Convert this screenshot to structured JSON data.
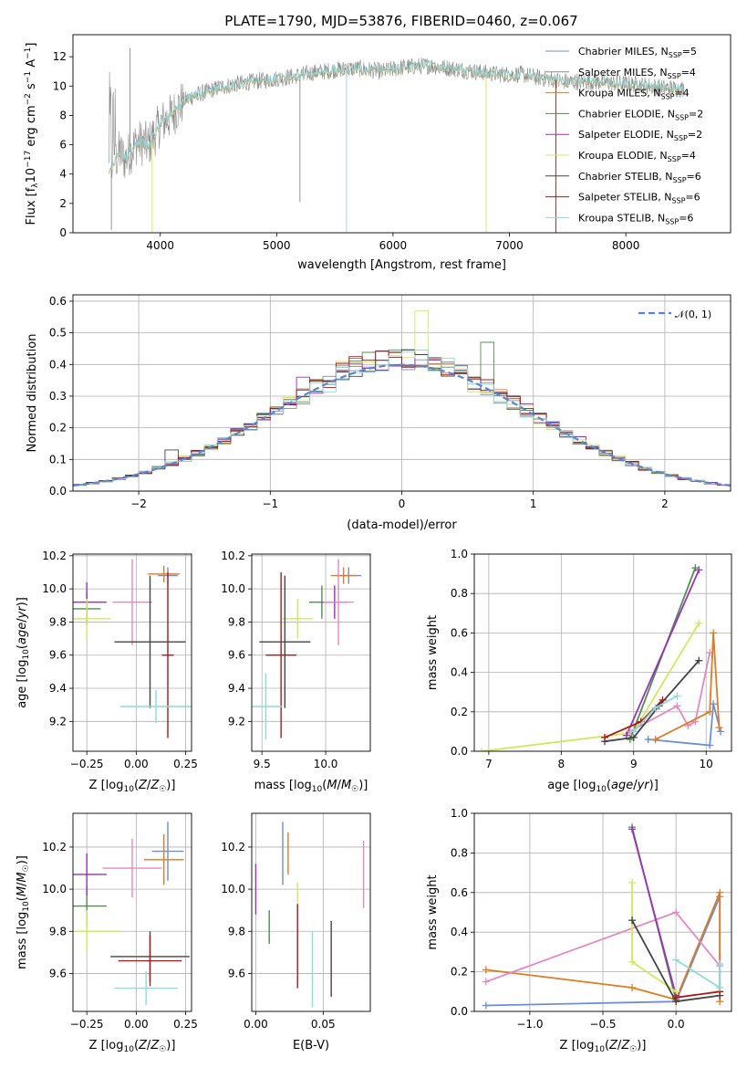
{
  "figure": {
    "title": "PLATE=1790, MJD=53876, FIBERID=0460, z=0.067"
  },
  "chart_data": [
    {
      "id": "spectrum",
      "type": "line",
      "title": "PLATE=1790, MJD=53876, FIBERID=0460, z=0.067",
      "xlabel": "wavelength [Angstrom, rest frame]",
      "ylabel": "Flux [f_λ 10^-17 erg cm^-2 s^-1 A^-1]",
      "xlim": [
        3250,
        8900
      ],
      "ylim": [
        0,
        13.5
      ],
      "xticks": [
        4000,
        5000,
        6000,
        7000,
        8000
      ],
      "yticks": [
        0,
        2,
        4,
        6,
        8,
        10,
        12
      ],
      "grid": false,
      "legend_position": "top-right",
      "legend": [
        {
          "base": "Chabrier MILES, N",
          "n": "5",
          "color": "#6a8fd6"
        },
        {
          "base": "Salpeter MILES, N",
          "n": "4",
          "color": "#8a8a8a"
        },
        {
          "base": "Kroupa MILES, N",
          "n": "4",
          "color": "#e07b1f"
        },
        {
          "base": "Chabrier ELODIE, N",
          "n": "2",
          "color": "#4f8f4f"
        },
        {
          "base": "Salpeter ELODIE, N",
          "n": "2",
          "color": "#9a2fc0"
        },
        {
          "base": "Kroupa ELODIE, N",
          "n": "4",
          "color": "#d4e857"
        },
        {
          "base": "Chabrier STELIB, N",
          "n": "6",
          "color": "#444444"
        },
        {
          "base": "Salpeter STELIB, N",
          "n": "6",
          "color": "#b01818"
        },
        {
          "base": "Kroupa STELIB, N",
          "n": "6",
          "color": "#8fdada"
        }
      ],
      "model_curve": {
        "x": [
          3570,
          3650,
          3700,
          3800,
          3900,
          4000,
          4100,
          4200,
          4300,
          4400,
          4500,
          4700,
          4900,
          5100,
          5300,
          5500,
          5700,
          5900,
          6100,
          6300,
          6500,
          6700,
          6900,
          7100,
          7300,
          7500,
          7700,
          7900,
          8100,
          8300,
          8500
        ],
        "y": [
          4.2,
          5.5,
          5.0,
          6.2,
          6.0,
          7.4,
          8.0,
          9.0,
          9.4,
          9.6,
          9.9,
          10.2,
          10.4,
          10.6,
          10.9,
          11.1,
          11.2,
          11.0,
          11.3,
          11.4,
          11.2,
          11.0,
          10.8,
          10.8,
          10.5,
          10.3,
          10.3,
          10.2,
          10.1,
          9.9,
          9.8
        ]
      }
    },
    {
      "id": "residuals",
      "type": "histogram",
      "xlabel": "(data-model)/error",
      "ylabel": "Normed distribution",
      "xlim": [
        -2.5,
        2.5
      ],
      "ylim": [
        0,
        0.62
      ],
      "xticks": [
        -2,
        -1,
        0,
        1,
        2
      ],
      "yticks": [
        0.0,
        0.1,
        0.2,
        0.3,
        0.4,
        0.5,
        0.6
      ],
      "grid": true,
      "legend_position": "top-right",
      "legend": [
        {
          "label": "𝒩(0, 1)",
          "color": "#5b84d8"
        }
      ],
      "series": [
        {
          "name": "Chabrier MILES",
          "color": "#6a8fd6",
          "spike": []
        },
        {
          "name": "Salpeter MILES",
          "color": "#8a8a8a",
          "spike": []
        },
        {
          "name": "Kroupa MILES",
          "color": "#e07b1f",
          "spike": []
        },
        {
          "name": "Chabrier ELODIE",
          "color": "#4f8f4f",
          "spike": [
            0.65,
            0.47
          ]
        },
        {
          "name": "Salpeter ELODIE",
          "color": "#9a2fc0",
          "spike": [
            -0.75,
            0.36
          ]
        },
        {
          "name": "Kroupa ELODIE",
          "color": "#d4e857",
          "spike": [
            0.15,
            0.57
          ]
        },
        {
          "name": "Chabrier STELIB",
          "color": "#444444",
          "spike": [
            -1.75,
            0.13
          ]
        },
        {
          "name": "Salpeter STELIB",
          "color": "#b01818",
          "spike": []
        },
        {
          "name": "Kroupa STELIB",
          "color": "#8fdada",
          "spike": []
        }
      ]
    },
    {
      "id": "age-vs-Z",
      "type": "scatter",
      "xlabel": "Z [log10(Z/Z☉)]",
      "ylabel": "age [log10(age/yr)]",
      "xlim": [
        -0.32,
        0.28
      ],
      "ylim": [
        9.02,
        10.21
      ],
      "xticks": [
        -0.25,
        0.0,
        0.25
      ],
      "yticks": [
        9.2,
        9.4,
        9.6,
        9.8,
        10.0,
        10.2
      ],
      "grid": true,
      "series": [
        {
          "name": "Chabrier MILES",
          "color": "#6a8fd6",
          "x": 0.16,
          "xerr": 0.05,
          "y": 10.08,
          "yerr": 0.05
        },
        {
          "name": "Kroupa MILES",
          "color": "#e07b1f",
          "x": 0.14,
          "xerr": 0.08,
          "y": 10.09,
          "yerr": 0.05
        },
        {
          "name": "Chabrier ELODIE",
          "color": "#4f8f4f",
          "x": -0.25,
          "xerr": 0.07,
          "y": 9.88,
          "yerr": 0.1
        },
        {
          "name": "Salpeter ELODIE",
          "color": "#9a2fc0",
          "x": -0.25,
          "xerr": 0.1,
          "y": 9.92,
          "yerr": 0.12
        },
        {
          "name": "Kroupa ELODIE",
          "color": "#d4e857",
          "x": -0.25,
          "xerr": 0.12,
          "y": 9.82,
          "yerr": 0.12
        },
        {
          "name": "Salpeter MILES (pink)",
          "color": "#e38ac0",
          "x": -0.02,
          "xerr": 0.1,
          "y": 9.92,
          "yerr": 0.26
        },
        {
          "name": "Chabrier STELIB",
          "color": "#444444",
          "x": 0.07,
          "xerr": 0.18,
          "y": 9.68,
          "yerr": 0.4
        },
        {
          "name": "Salpeter STELIB",
          "color": "#b01818",
          "x": 0.16,
          "xerr": 0.03,
          "y": 9.6,
          "yerr": 0.5
        },
        {
          "name": "Kroupa STELIB",
          "color": "#8fdada",
          "x": 0.1,
          "xerr": 0.18,
          "y": 9.29,
          "yerr": 0.1
        }
      ]
    },
    {
      "id": "age-vs-mass",
      "type": "scatter",
      "xlabel": "mass [log10(M/M☉)]",
      "ylabel": "",
      "xlim": [
        9.42,
        10.35
      ],
      "ylim": [
        9.02,
        10.21
      ],
      "xticks": [
        9.5,
        10.0
      ],
      "yticks": [
        9.2,
        9.4,
        9.6,
        9.8,
        10.0,
        10.2
      ],
      "grid": true,
      "series": [
        {
          "name": "Chabrier MILES",
          "color": "#6a8fd6",
          "x": 10.18,
          "xerr": 0.1,
          "y": 10.08,
          "yerr": 0.05
        },
        {
          "name": "Kroupa MILES",
          "color": "#e07b1f",
          "x": 10.14,
          "xerr": 0.1,
          "y": 10.08,
          "yerr": 0.05
        },
        {
          "name": "Chabrier ELODIE",
          "color": "#4f8f4f",
          "x": 9.97,
          "xerr": 0.1,
          "y": 9.92,
          "yerr": 0.1
        },
        {
          "name": "Salpeter ELODIE",
          "color": "#9a2fc0",
          "x": 10.07,
          "xerr": 0.1,
          "y": 9.92,
          "yerr": 0.1
        },
        {
          "name": "Kroupa ELODIE",
          "color": "#d4e857",
          "x": 9.78,
          "xerr": 0.12,
          "y": 9.82,
          "yerr": 0.12
        },
        {
          "name": "Salpeter MILES (pink)",
          "color": "#e38ac0",
          "x": 10.1,
          "xerr": 0.12,
          "y": 9.92,
          "yerr": 0.26
        },
        {
          "name": "Chabrier STELIB",
          "color": "#444444",
          "x": 9.68,
          "xerr": 0.2,
          "y": 9.68,
          "yerr": 0.4
        },
        {
          "name": "Salpeter STELIB",
          "color": "#b01818",
          "x": 9.65,
          "xerr": 0.12,
          "y": 9.6,
          "yerr": 0.5
        },
        {
          "name": "Kroupa STELIB",
          "color": "#8fdada",
          "x": 9.53,
          "xerr": 0.13,
          "y": 9.29,
          "yerr": 0.2
        }
      ]
    },
    {
      "id": "weight-vs-age",
      "type": "line",
      "xlabel": "age [log10(age/yr)]",
      "ylabel": "mass weight",
      "xlim": [
        6.8,
        10.35
      ],
      "ylim": [
        0,
        1.0
      ],
      "xticks": [
        7,
        8,
        9,
        10
      ],
      "yticks": [
        0.0,
        0.2,
        0.4,
        0.6,
        0.8,
        1.0
      ],
      "grid": true,
      "series": [
        {
          "name": "Kroupa ELODIE",
          "color": "#d4e857",
          "x": [
            6.9,
            8.9,
            9.0,
            9.9
          ],
          "y": [
            0.0,
            0.09,
            0.1,
            0.65
          ]
        },
        {
          "name": "Chabrier ELODIE",
          "color": "#4f8f4f",
          "x": [
            8.95,
            9.85
          ],
          "y": [
            0.06,
            0.93
          ]
        },
        {
          "name": "Salpeter ELODIE",
          "color": "#9a2fc0",
          "x": [
            8.9,
            9.9
          ],
          "y": [
            0.08,
            0.92
          ]
        },
        {
          "name": "Salpeter MILES (pink)",
          "color": "#e38ac0",
          "x": [
            8.95,
            9.6,
            9.75,
            9.85,
            10.05
          ],
          "y": [
            0.1,
            0.23,
            0.13,
            0.15,
            0.5
          ]
        },
        {
          "name": "Chabrier MILES",
          "color": "#6a8fd6",
          "x": [
            9.2,
            10.05,
            10.1,
            10.2
          ],
          "y": [
            0.06,
            0.03,
            0.24,
            0.1
          ]
        },
        {
          "name": "Kroupa MILES",
          "color": "#e07b1f",
          "x": [
            9.3,
            10.05,
            10.1,
            10.18
          ],
          "y": [
            0.06,
            0.2,
            0.6,
            0.12
          ]
        },
        {
          "name": "Chabrier STELIB",
          "color": "#444444",
          "x": [
            8.6,
            9.0,
            9.35,
            9.9
          ],
          "y": [
            0.05,
            0.07,
            0.23,
            0.46
          ]
        },
        {
          "name": "Salpeter STELIB",
          "color": "#b01818",
          "x": [
            8.6,
            9.1,
            9.4
          ],
          "y": [
            0.07,
            0.15,
            0.26
          ]
        },
        {
          "name": "Kroupa STELIB",
          "color": "#8fdada",
          "x": [
            9.0,
            9.3,
            9.6
          ],
          "y": [
            0.1,
            0.22,
            0.28
          ]
        }
      ]
    },
    {
      "id": "mass-vs-Z",
      "type": "scatter",
      "xlabel": "Z [log10(Z/Z☉)]",
      "ylabel": "mass [log10(M/M☉)]",
      "xlim": [
        -0.32,
        0.28
      ],
      "ylim": [
        9.42,
        10.36
      ],
      "xticks": [
        -0.25,
        0.0,
        0.25
      ],
      "yticks": [
        9.6,
        9.8,
        10.0,
        10.2
      ],
      "grid": true,
      "series": [
        {
          "name": "Chabrier MILES",
          "color": "#6a8fd6",
          "x": 0.16,
          "xerr": 0.08,
          "y": 10.18,
          "yerr": 0.14
        },
        {
          "name": "Kroupa MILES",
          "color": "#e07b1f",
          "x": 0.14,
          "xerr": 0.1,
          "y": 10.14,
          "yerr": 0.12
        },
        {
          "name": "Chabrier ELODIE",
          "color": "#4f8f4f",
          "x": -0.25,
          "xerr": 0.1,
          "y": 9.92,
          "yerr": 0.1
        },
        {
          "name": "Salpeter ELODIE",
          "color": "#9a2fc0",
          "x": -0.25,
          "xerr": 0.1,
          "y": 10.07,
          "yerr": 0.1
        },
        {
          "name": "Kroupa ELODIE",
          "color": "#d4e857",
          "x": -0.25,
          "xerr": 0.17,
          "y": 9.8,
          "yerr": 0.1
        },
        {
          "name": "Salpeter MILES (pink)",
          "color": "#e38ac0",
          "x": -0.02,
          "xerr": 0.15,
          "y": 10.1,
          "yerr": 0.14
        },
        {
          "name": "Chabrier STELIB",
          "color": "#444444",
          "x": 0.07,
          "xerr": 0.2,
          "y": 9.68,
          "yerr": 0.12
        },
        {
          "name": "Salpeter STELIB",
          "color": "#b01818",
          "x": 0.07,
          "xerr": 0.16,
          "y": 9.66,
          "yerr": 0.12
        },
        {
          "name": "Kroupa STELIB",
          "color": "#8fdada",
          "x": 0.05,
          "xerr": 0.16,
          "y": 9.53,
          "yerr": 0.08
        }
      ]
    },
    {
      "id": "mass-vs-ebv",
      "type": "scatter",
      "xlabel": "E(B-V)",
      "ylabel": "",
      "xlim": [
        -0.003,
        0.085
      ],
      "ylim": [
        9.42,
        10.36
      ],
      "xticks": [
        0.0,
        0.05
      ],
      "yticks": [
        9.6,
        9.8,
        10.0,
        10.2
      ],
      "grid": true,
      "series": [
        {
          "name": "Salpeter ELODIE",
          "color": "#9a2fc0",
          "x": 0.0,
          "y": 10.0,
          "yerr": 0.12
        },
        {
          "name": "Chabrier ELODIE",
          "color": "#4f8f4f",
          "x": 0.01,
          "y": 9.82,
          "yerr": 0.08
        },
        {
          "name": "Chabrier MILES",
          "color": "#6a8fd6",
          "x": 0.02,
          "y": 10.17,
          "yerr": 0.15
        },
        {
          "name": "Kroupa MILES",
          "color": "#e07b1f",
          "x": 0.024,
          "y": 10.17,
          "yerr": 0.1
        },
        {
          "name": "Kroupa ELODIE",
          "color": "#d4e857",
          "x": 0.031,
          "y": 9.97,
          "yerr": 0.06
        },
        {
          "name": "Salpeter STELIB",
          "color": "#b01818",
          "x": 0.031,
          "y": 9.73,
          "yerr": 0.2
        },
        {
          "name": "Kroupa STELIB",
          "color": "#8fdada",
          "x": 0.042,
          "y": 9.62,
          "yerr": 0.18
        },
        {
          "name": "Chabrier STELIB",
          "color": "#444444",
          "x": 0.056,
          "y": 9.67,
          "yerr": 0.18
        },
        {
          "name": "Salpeter MILES (pink)",
          "color": "#e38ac0",
          "x": 0.08,
          "y": 10.07,
          "yerr": 0.16
        }
      ]
    },
    {
      "id": "weight-vs-Z",
      "type": "line",
      "xlabel": "Z [log10(Z/Z☉)]",
      "ylabel": "mass weight",
      "xlim": [
        -1.38,
        0.38
      ],
      "ylim": [
        0,
        1.0
      ],
      "xticks": [
        -1.0,
        -0.5,
        0.0
      ],
      "yticks": [
        0.0,
        0.2,
        0.4,
        0.6,
        0.8,
        1.0
      ],
      "grid": true,
      "series": [
        {
          "name": "Chabrier MILES",
          "color": "#6a8fd6",
          "x": [
            -1.3,
            0.0,
            0.3,
            0.3
          ],
          "y": [
            0.03,
            0.05,
            0.58,
            0.1
          ]
        },
        {
          "name": "Kroupa MILES",
          "color": "#e07b1f",
          "x": [
            -1.3,
            -0.3,
            0.0,
            0.3,
            0.3
          ],
          "y": [
            0.21,
            0.12,
            0.06,
            0.6,
            0.05
          ]
        },
        {
          "name": "Salpeter MILES (pink)",
          "color": "#e38ac0",
          "x": [
            -1.3,
            0.0,
            0.3
          ],
          "y": [
            0.15,
            0.5,
            0.23
          ]
        },
        {
          "name": "Chabrier ELODIE",
          "color": "#4f8f4f",
          "x": [
            -0.3,
            0.0
          ],
          "y": [
            0.93,
            0.06
          ]
        },
        {
          "name": "Salpeter ELODIE",
          "color": "#9a2fc0",
          "x": [
            -0.3,
            0.0
          ],
          "y": [
            0.92,
            0.08
          ]
        },
        {
          "name": "Kroupa ELODIE",
          "color": "#d4e857",
          "x": [
            -0.3,
            -0.3,
            0.0
          ],
          "y": [
            0.65,
            0.25,
            0.1
          ]
        },
        {
          "name": "Chabrier STELIB",
          "color": "#444444",
          "x": [
            -0.3,
            0.0,
            0.3
          ],
          "y": [
            0.46,
            0.05,
            0.08
          ]
        },
        {
          "name": "Salpeter STELIB",
          "color": "#b01818",
          "x": [
            0.0,
            0.3
          ],
          "y": [
            0.07,
            0.1
          ]
        },
        {
          "name": "Kroupa STELIB",
          "color": "#8fdada",
          "x": [
            0.0,
            0.3,
            0.3
          ],
          "y": [
            0.26,
            0.12,
            0.24
          ]
        }
      ]
    }
  ]
}
